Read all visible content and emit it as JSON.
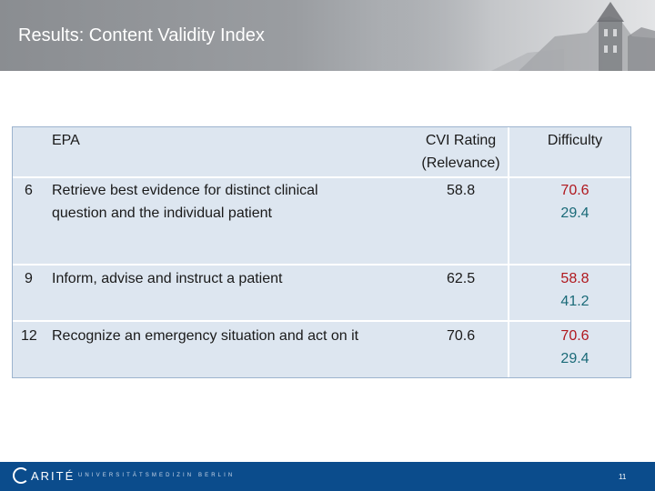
{
  "header": {
    "title": "Results: Content Validity Index"
  },
  "table": {
    "columns": {
      "epa": "EPA",
      "cvi_line1": "CVI Rating",
      "cvi_line2": "(Relevance)",
      "difficulty": "Difficulty"
    },
    "rows": [
      {
        "num": "6",
        "epa_line1": "Retrieve best evidence for distinct clinical",
        "epa_line2": "question and the individual patient",
        "cvi": "58.8",
        "diff_red": "70.6",
        "diff_teal": "29.4"
      },
      {
        "num": "9",
        "epa_line1": "Inform, advise and instruct a patient",
        "epa_line2": "",
        "cvi": "62.5",
        "diff_red": "58.8",
        "diff_teal": "41.2"
      },
      {
        "num": "12",
        "epa_line1": "Recognize an emergency situation and act on it",
        "epa_line2": "",
        "cvi": "70.6",
        "diff_red": "70.6",
        "diff_teal": "29.4"
      }
    ],
    "colors": {
      "red": "#b0181e",
      "teal": "#1a6a78",
      "cell_bg": "#dde6f0"
    }
  },
  "footer": {
    "logo_text": "ARITÉ",
    "subtitle": "UNIVERSITÄTSMEDIZIN BERLIN",
    "page_number": "11",
    "bar_color": "#0b4c8c"
  }
}
